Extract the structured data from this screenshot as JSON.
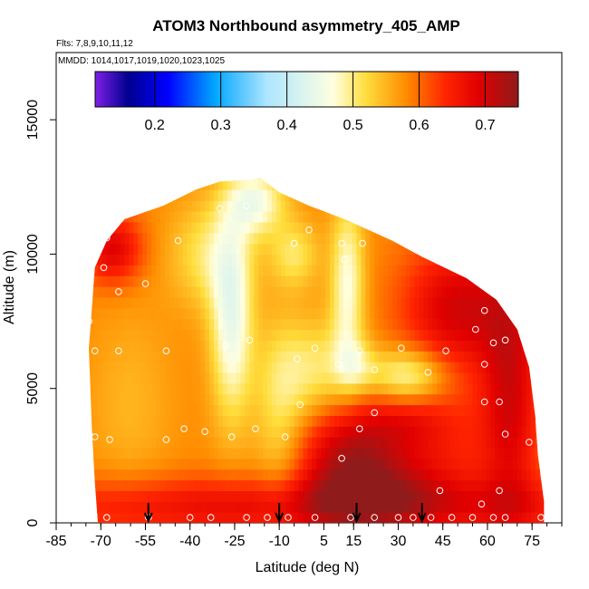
{
  "chart_data": {
    "type": "heatmap",
    "title": "ATOM3 Northbound asymmetry_405_AMP",
    "subtitle_lines": [
      "Flts: 7,8,9,10,11,12",
      "MMDD: 1014,1017,1019,1020,1023,1025"
    ],
    "xlabel": "Latitude (deg N)",
    "ylabel": "Altitude (m)",
    "xlim": [
      -85,
      85
    ],
    "ylim": [
      0,
      17500
    ],
    "x_ticks": [
      -85,
      -70,
      -55,
      -40,
      -25,
      -10,
      5,
      15,
      30,
      45,
      60,
      75
    ],
    "x_tick_labels": [
      "-85",
      "-70",
      "-55",
      "-40",
      "-25",
      "-10",
      "5",
      "15",
      "30",
      "45",
      "60",
      "75"
    ],
    "x_minor_step": 5,
    "y_ticks": [
      0,
      5000,
      10000,
      15000
    ],
    "y_tick_labels": [
      "0",
      "5000",
      "10000",
      "15000"
    ],
    "colorbar": {
      "range": [
        0.11,
        0.75
      ],
      "ticks": [
        0.2,
        0.3,
        0.4,
        0.5,
        0.6,
        0.7
      ],
      "tick_labels": [
        "0.2",
        "0.3",
        "0.4",
        "0.5",
        "0.6",
        "0.7"
      ],
      "colors": [
        "#7f1fe6",
        "#00008f",
        "#0000ff",
        "#00a5ff",
        "#aee6ff",
        "#ffffe0",
        "#ffdd3c",
        "#ff8c00",
        "#ff2400",
        "#e00000",
        "#8f1b1b"
      ],
      "color_stops": [
        0.11,
        0.16,
        0.22,
        0.29,
        0.37,
        0.47,
        0.52,
        0.58,
        0.64,
        0.69,
        0.75
      ]
    },
    "domain_outline": [
      [
        -71,
        0
      ],
      [
        -72,
        1500
      ],
      [
        -73,
        3500
      ],
      [
        -74,
        6500
      ],
      [
        -72,
        9500
      ],
      [
        -68,
        10500
      ],
      [
        -62,
        11300
      ],
      [
        -49,
        11800
      ],
      [
        -38,
        12400
      ],
      [
        -30,
        12700
      ],
      [
        -16,
        12800
      ],
      [
        -10,
        12300
      ],
      [
        0,
        11800
      ],
      [
        12,
        11300
      ],
      [
        28,
        10500
      ],
      [
        38,
        9900
      ],
      [
        53,
        9100
      ],
      [
        63,
        8300
      ],
      [
        70,
        7200
      ],
      [
        74,
        5800
      ],
      [
        76,
        4000
      ],
      [
        77,
        2500
      ],
      [
        79,
        800
      ],
      [
        79,
        0
      ]
    ],
    "field_base": 0.58,
    "field_features": [
      {
        "x": -26,
        "y": 7500,
        "sx": 5,
        "sy": 2600,
        "a": -0.13
      },
      {
        "x": -34,
        "y": 10000,
        "sx": 9,
        "sy": 1400,
        "a": -0.07
      },
      {
        "x": -18,
        "y": 12000,
        "sx": 7,
        "sy": 900,
        "a": -0.12
      },
      {
        "x": -5,
        "y": 10000,
        "sx": 6,
        "sy": 900,
        "a": -0.07
      },
      {
        "x": 3,
        "y": 5500,
        "sx": 10,
        "sy": 1400,
        "a": -0.09
      },
      {
        "x": 13,
        "y": 9000,
        "sx": 4,
        "sy": 2200,
        "a": -0.11
      },
      {
        "x": 16,
        "y": 5800,
        "sx": 5,
        "sy": 700,
        "a": -0.06
      },
      {
        "x": 33,
        "y": 5500,
        "sx": 9,
        "sy": 700,
        "a": -0.11
      },
      {
        "x": -10,
        "y": 4000,
        "sx": 6,
        "sy": 2500,
        "a": -0.06
      },
      {
        "x": 12,
        "y": 2600,
        "sx": 12,
        "sy": 1800,
        "a": 0.12
      },
      {
        "x": 28,
        "y": 1700,
        "sx": 14,
        "sy": 1300,
        "a": 0.08
      },
      {
        "x": 50,
        "y": 8000,
        "sx": 13,
        "sy": 1700,
        "a": 0.12
      },
      {
        "x": 68,
        "y": 5000,
        "sx": 7,
        "sy": 3500,
        "a": 0.11
      },
      {
        "x": -66,
        "y": 10200,
        "sx": 7,
        "sy": 900,
        "a": 0.11
      },
      {
        "x": 50,
        "y": 3000,
        "sx": 12,
        "sy": 1600,
        "a": 0.04
      },
      {
        "x": 0,
        "y": 600,
        "sx": 80,
        "sy": 800,
        "a": 0.1
      },
      {
        "x": -60,
        "y": 4500,
        "sx": 10,
        "sy": 2500,
        "a": -0.03
      },
      {
        "x": 33,
        "y": 3800,
        "sx": 10,
        "sy": 700,
        "a": 0.05
      }
    ],
    "observation_points": [
      [
        -68,
        200
      ],
      [
        -54,
        200
      ],
      [
        -40,
        200
      ],
      [
        -33,
        200
      ],
      [
        -21,
        200
      ],
      [
        -14,
        200
      ],
      [
        -7,
        200
      ],
      [
        2,
        200
      ],
      [
        14,
        200
      ],
      [
        22,
        200
      ],
      [
        30,
        200
      ],
      [
        35,
        200
      ],
      [
        41,
        200
      ],
      [
        48,
        200
      ],
      [
        55,
        200
      ],
      [
        62,
        200
      ],
      [
        78,
        200
      ],
      [
        -72,
        3200
      ],
      [
        -67,
        3100
      ],
      [
        -48,
        3100
      ],
      [
        -42,
        3500
      ],
      [
        -35,
        3400
      ],
      [
        -26,
        3200
      ],
      [
        -18,
        3500
      ],
      [
        -8,
        3200
      ],
      [
        11,
        2400
      ],
      [
        17,
        3500
      ],
      [
        22,
        4100
      ],
      [
        -3,
        4400
      ],
      [
        -72,
        6400
      ],
      [
        -64,
        6400
      ],
      [
        -48,
        6400
      ],
      [
        -28,
        6600
      ],
      [
        -20,
        6800
      ],
      [
        -4,
        6100
      ],
      [
        2,
        6500
      ],
      [
        10,
        5900
      ],
      [
        17,
        6400
      ],
      [
        22,
        5700
      ],
      [
        31,
        6500
      ],
      [
        40,
        5600
      ],
      [
        46,
        6400
      ],
      [
        56,
        7200
      ],
      [
        59,
        7900
      ],
      [
        62,
        6700
      ],
      [
        66,
        6800
      ],
      [
        59,
        5900
      ],
      [
        -75,
        5400
      ],
      [
        -74,
        7500
      ],
      [
        -69,
        9500
      ],
      [
        -64,
        8600
      ],
      [
        -55,
        8900
      ],
      [
        -44,
        10500
      ],
      [
        -30,
        11700
      ],
      [
        -21,
        11800
      ],
      [
        -5,
        10400
      ],
      [
        0,
        10900
      ],
      [
        11,
        10400
      ],
      [
        18,
        10400
      ],
      [
        12,
        9800
      ],
      [
        -68,
        10600
      ],
      [
        59,
        4500
      ],
      [
        64,
        4500
      ],
      [
        66,
        3300
      ],
      [
        74,
        3000
      ],
      [
        64,
        1200
      ],
      [
        58,
        700
      ],
      [
        66,
        200
      ],
      [
        -74,
        3300
      ],
      [
        44,
        1200
      ]
    ],
    "arrows_at_latitude": [
      -54,
      -10,
      16,
      38
    ]
  }
}
